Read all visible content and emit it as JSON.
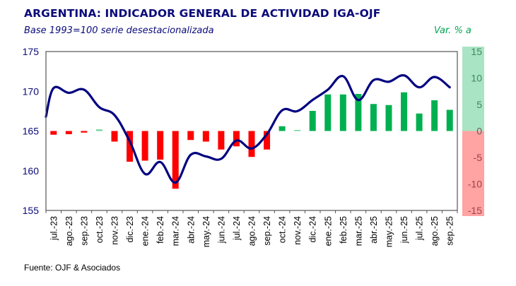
{
  "header": {
    "title": "ARGENTINA: INDICADOR GENERAL DE ACTIVIDAD IGA-OJF",
    "subtitle": "Base 1993=100 serie desestacionalizada",
    "right_unit": "Var. % a"
  },
  "footer": {
    "source": "Fuente: OJF & Asociados"
  },
  "colors": {
    "title": "#0b0b7a",
    "line": "#000080",
    "bar_positive": "#00b050",
    "bar_negative": "#ff0000",
    "band_positive": "#a9e4c4",
    "band_negative": "#ffa3a3",
    "right_unit": "#00a651"
  },
  "chart_data": {
    "type": "bar+line",
    "title": "ARGENTINA: INDICADOR GENERAL DE ACTIVIDAD IGA-OJF",
    "subtitle": "Base 1993=100 serie desestacionalizada",
    "categories": [
      "jul.-23",
      "ago.-23",
      "sep.-23",
      "oct.-23",
      "nov.-23",
      "dic.-23",
      "ene.-24",
      "feb.-24",
      "mar.-24",
      "abr.-24",
      "may.-24",
      "jun.-24",
      "jul.-24",
      "ago.-24",
      "sep.-24",
      "oct.-24",
      "nov.-24",
      "dic.-24",
      "ene.-25",
      "feb.-25",
      "mar.-25",
      "abr.-25",
      "may.-25",
      "jun.-25",
      "jul.-25",
      "ago.-25",
      "sep.-25"
    ],
    "series": [
      {
        "name": "IGA-OJF (Base 1993=100, desestacionalizada)",
        "type": "line",
        "axis": "left",
        "values": [
          170.4,
          169.8,
          170.2,
          168.0,
          167.0,
          163.7,
          159.6,
          161.1,
          158.5,
          162.0,
          161.8,
          161.5,
          163.8,
          162.8,
          164.6,
          167.6,
          167.5,
          168.9,
          170.2,
          171.9,
          168.9,
          171.4,
          171.2,
          172.0,
          170.5,
          171.8,
          170.5
        ],
        "left_edge_value": 166.8
      },
      {
        "name": "Var. % a",
        "type": "bar",
        "axis": "right",
        "values": [
          -0.7,
          -0.6,
          -0.3,
          0.3,
          -2.0,
          -5.8,
          -5.6,
          -5.4,
          -10.9,
          -1.7,
          -2.0,
          -3.5,
          -2.9,
          -4.9,
          -3.5,
          0.9,
          0.2,
          3.8,
          6.9,
          6.9,
          7.0,
          5.1,
          4.9,
          7.3,
          3.3,
          5.8,
          4.0
        ]
      }
    ],
    "left_axis": {
      "ylim": [
        155,
        175
      ],
      "ticks": [
        "155",
        "160",
        "165",
        "170",
        "175"
      ]
    },
    "right_axis": {
      "label": "Var. % a",
      "ylim": [
        -15,
        15
      ],
      "ticks": [
        "-15",
        "-10",
        "-5",
        "0",
        "5",
        "10",
        "15"
      ]
    },
    "xlabel": "",
    "grid": false,
    "legend": "none",
    "source": "Fuente: OJF & Asociados"
  }
}
